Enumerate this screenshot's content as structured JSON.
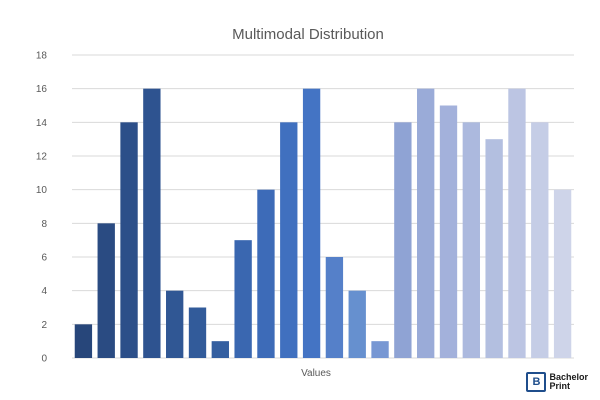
{
  "chart_data": {
    "type": "bar",
    "title": "Multimodal Distribution",
    "xlabel": "Values",
    "ylabel": "",
    "ylim": [
      0,
      18
    ],
    "yticks": [
      0,
      2,
      4,
      6,
      8,
      10,
      12,
      14,
      16,
      18
    ],
    "grid": true,
    "legend": "none",
    "values": [
      2,
      8,
      14,
      16,
      4,
      3,
      1,
      7,
      10,
      14,
      16,
      6,
      4,
      1,
      14,
      16,
      15,
      14,
      13,
      16,
      14,
      10
    ],
    "colors": [
      "#27467a",
      "#2a4b82",
      "#2c4f89",
      "#2e5390",
      "#305794",
      "#325b9a",
      "#345fa0",
      "#3a67b0",
      "#3d6bb8",
      "#4070bf",
      "#4474c4",
      "#5580c9",
      "#6690cf",
      "#7797d3",
      "#8fa3d4",
      "#9aabd8",
      "#a3b1db",
      "#acb9de",
      "#b3bfe0",
      "#bcc5e3",
      "#c5cde6",
      "#ced4e9"
    ]
  },
  "logo": {
    "mark": "B",
    "line1": "Bachelor",
    "line2": "Print"
  }
}
